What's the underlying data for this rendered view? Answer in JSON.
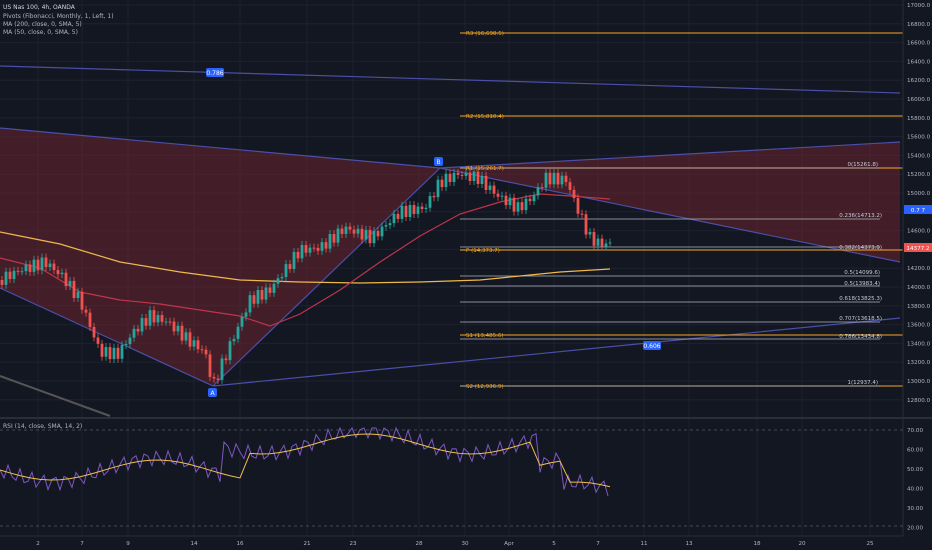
{
  "header": {
    "title": "US Nas 100, 4h, OANDA",
    "indicators": [
      "Pivots (Fibonacci, Monthly, 1, Left, 1)",
      "MA (200, close, 0, SMA, 5)",
      "MA (50, close, 0, SMA, 5)"
    ]
  },
  "rsi": {
    "label": "RSI (14, close, SMA, 14, 2)",
    "ticks": [
      "70.00",
      "60.00",
      "50.00",
      "40.00",
      "30.00",
      "20.00"
    ]
  },
  "price_axis": {
    "ticks": [
      "17000.0",
      "16800.0",
      "16600.0",
      "16400.0",
      "16200.0",
      "16000.0",
      "15800.0",
      "15600.0",
      "15400.0",
      "15200.0",
      "15000.0",
      "14800.0",
      "14600.0",
      "14400.0",
      "14200.0",
      "14000.0",
      "13800.0",
      "13600.0",
      "13400.0",
      "13200.0",
      "13000.0",
      "12800.0"
    ],
    "current_price_badge": "14377.2",
    "secondary_badge": "0.7 7"
  },
  "time_axis": {
    "ticks": [
      "2",
      "7",
      "9",
      "14",
      "16",
      "21",
      "23",
      "28",
      "30",
      "Apr",
      "5",
      "7",
      "11",
      "13",
      "18",
      "20",
      "25"
    ]
  },
  "pivots": {
    "r3": "R3 (16,698.5)",
    "r2": "R2 (15,810.4)",
    "r1": "R1 (15,261.7)",
    "p": "P (14,373.7)",
    "s1": "S1 (13,485.6)",
    "s2": "S2 (12,936.9)"
  },
  "fib_levels": [
    "0(15261.8)",
    "0.236(14713.2)",
    "0.382(14373.9)",
    "0.5(14099.6)",
    "0.5(13983.4)",
    "0.618(13825.3)",
    "0.707(13618.5)",
    "0.786(13434.8)",
    "1(12937.4)"
  ],
  "markers": {
    "point_a": "A",
    "point_b": "B",
    "ratio_top": "0.786",
    "ratio_bottom": "0.606"
  },
  "colors": {
    "background": "#131722",
    "bull": "#26a69a",
    "bear": "#ef5350",
    "pivot": "#f5a623",
    "fib_line": "#b2b5be",
    "trendline": "#4a4fa8",
    "ma200": "#f0b84a",
    "ma50": "#c2334a",
    "rsi_line": "#7e57c2",
    "rsi_ma": "#f0c14b",
    "badge_blue": "#2962ff"
  }
}
